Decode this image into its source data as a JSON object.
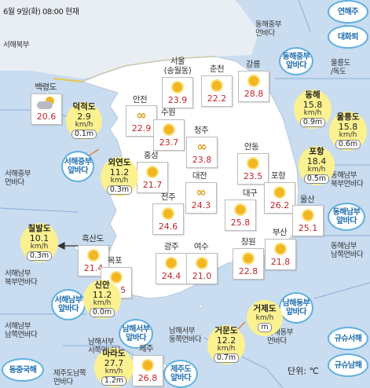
{
  "header": {
    "text": "6월 9일(화) 08:00 현재"
  },
  "unit": "단위: ℃",
  "sea_areas": [
    {
      "name": "서해북부",
      "key": "nw"
    },
    {
      "name": "동해중부\n먼바다",
      "key": "ec_far"
    },
    {
      "name": "서해중부\n먼바다",
      "key": "wc_far"
    },
    {
      "name": "울릉도\n/독도",
      "key": "ulleung"
    },
    {
      "name": "동해남부\n북부먼바다",
      "key": "es_n_far"
    },
    {
      "name": "서해남부\n북부먼바다",
      "key": "ws_n_far"
    },
    {
      "name": "동해남부\n남쪽먼바다",
      "key": "es_s_far"
    },
    {
      "name": "서해남부\n남쪽먼바다",
      "key": "ws_s_far"
    },
    {
      "name": "남해서부\n서쪽먼바다",
      "key": "sw_w_far"
    },
    {
      "name": "남해서부\n동쪽먼바다",
      "key": "sw_e_far"
    },
    {
      "name": "남해동부\n먼바다",
      "key": "se_far"
    },
    {
      "name": "제주도남쪽\n먼바다",
      "key": "jeju_s_far"
    }
  ],
  "region_bubbles": [
    {
      "name": "연해주"
    },
    {
      "name": "대화퇴"
    },
    {
      "name": "동해중부\n앞바다"
    },
    {
      "name": "동해남부\n앞바다"
    },
    {
      "name": "서해중부\n앞바다"
    },
    {
      "name": "서해남부\n앞바다"
    },
    {
      "name": "남해동부\n앞바다"
    },
    {
      "name": "남해서부\n앞바다"
    },
    {
      "name": "제주도\n앞바다"
    },
    {
      "name": "동중국해"
    },
    {
      "name": "규슈서해"
    },
    {
      "name": "규슈남해"
    }
  ],
  "cities": [
    {
      "name": "백령도",
      "temp": "20.6",
      "icon": "cloud-sun"
    },
    {
      "name": "서울\n(송월동)",
      "temp": "23.9",
      "icon": "sun"
    },
    {
      "name": "춘천",
      "temp": "22.2",
      "icon": "sun"
    },
    {
      "name": "강릉",
      "temp": "28.8",
      "icon": "sun"
    },
    {
      "name": "안전",
      "temp": "22.9",
      "icon": "haze"
    },
    {
      "name": "수원",
      "temp": "23.7",
      "icon": "sun"
    },
    {
      "name": "청주",
      "temp": "23.8",
      "icon": "haze"
    },
    {
      "name": "홍성",
      "temp": "21.7",
      "icon": "sun"
    },
    {
      "name": "안동",
      "temp": "23.5",
      "icon": "sun"
    },
    {
      "name": "대전",
      "temp": "24.3",
      "icon": "haze"
    },
    {
      "name": "전주",
      "temp": "24.6",
      "icon": "sun"
    },
    {
      "name": "대구",
      "temp": "25.8",
      "icon": "sun"
    },
    {
      "name": "포항",
      "temp": "26.2",
      "icon": "sun"
    },
    {
      "name": "울산",
      "temp": "25.1",
      "icon": "sun"
    },
    {
      "name": "흑산도",
      "temp": "21.4",
      "icon": "sun"
    },
    {
      "name": "광주",
      "temp": "24.4",
      "icon": "sun"
    },
    {
      "name": "여수",
      "temp": "21.0",
      "icon": "sun"
    },
    {
      "name": "부산",
      "temp": "21.8",
      "icon": "sun"
    },
    {
      "name": "창원",
      "temp": "22.8",
      "icon": "sun"
    },
    {
      "name": "목포",
      "temp": "23.5",
      "icon": "sun"
    },
    {
      "name": "제주",
      "temp": "26.8",
      "icon": "sun"
    }
  ],
  "buoys": [
    {
      "name": "덕적도",
      "wind": "2.9",
      "unit": "km/h",
      "wave": "0.1m"
    },
    {
      "name": "외연도",
      "wind": "11.2",
      "unit": "km/h",
      "wave": "0.3m"
    },
    {
      "name": "칠발도",
      "wind": "10.1",
      "unit": "km/h",
      "wave": "0.3m"
    },
    {
      "name": "신안",
      "wind": "11.2",
      "unit": "km/h",
      "wave": "0.0m"
    },
    {
      "name": "마라도",
      "wind": "27.7",
      "unit": "km/h",
      "wave": "1.2m"
    },
    {
      "name": "거문도",
      "wind": "12.2",
      "unit": "km/h",
      "wave": "0.7m"
    },
    {
      "name": "거제도",
      "wind": "",
      "unit": "km/h",
      "wave": "m"
    },
    {
      "name": "포항",
      "wind": "18.4",
      "unit": "km/h",
      "wave": "0.5m"
    },
    {
      "name": "동해",
      "wind": "15.8",
      "unit": "km/h",
      "wave": "0.9m"
    },
    {
      "name": "울릉도",
      "wind": "15.8",
      "unit": "km/h",
      "wave": "0.6m"
    }
  ],
  "colors": {
    "sea": "#c9dcf0",
    "land": "#ffffff",
    "temp": "#c0282d",
    "buoy": "#fbf190",
    "bubble_border": "#5fb0e0",
    "dmz": "#e8c84a"
  }
}
